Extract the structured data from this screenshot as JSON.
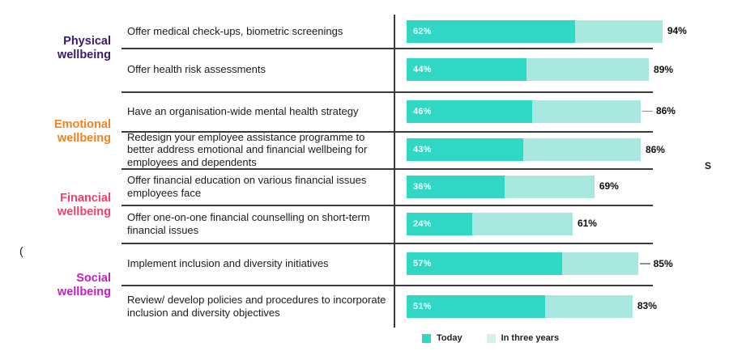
{
  "page": {
    "background": "#ffffff"
  },
  "stray_fragments": {
    "left": "(",
    "right": "S"
  },
  "legend": {
    "items": [
      {
        "label": "Today",
        "swatch_color": "#30d7c4"
      },
      {
        "label": "In three years",
        "swatch_color": "#d3f2ed"
      }
    ]
  },
  "colors": {
    "today_bar": "#30d7c4",
    "future_bar": "#a9e8e0",
    "axis_line": "#3a3a3a",
    "item_text": "#1b1b1b",
    "inside_label": "#ffffff",
    "outside_label": "#0d0d0d"
  },
  "chart_data": {
    "type": "bar",
    "orientation": "horizontal",
    "unit": "%",
    "x_max": 100,
    "series_names": [
      "Today",
      "In three years"
    ],
    "legend_position": "bottom",
    "grid": false,
    "groups": [
      {
        "label": "Physical wellbeing",
        "color": "#3b1874",
        "items": [
          {
            "label": "Offer medical check-ups, biometric screenings",
            "today": 62,
            "in_three_years": 94
          },
          {
            "label": "Offer health risk assessments",
            "today": 44,
            "in_three_years": 89
          }
        ]
      },
      {
        "label": "Emotional wellbeing",
        "color": "#f5821f",
        "items": [
          {
            "label": "Have an organisation-wide mental health strategy",
            "today": 46,
            "in_three_years": 86,
            "leader_dash": true
          },
          {
            "label": "Redesign your employee assistance programme to better address emotional and financial wellbeing for employees and dependents",
            "today": 43,
            "in_three_years": 86
          }
        ]
      },
      {
        "label": "Financial wellbeing",
        "color": "#f63e6a",
        "items": [
          {
            "label": "Offer financial education on various financial issues employees face",
            "today": 36,
            "in_three_years": 69
          },
          {
            "label": "Offer one-on-one financial counselling on short-term financial issues",
            "today": 24,
            "in_three_years": 61
          }
        ]
      },
      {
        "label": "Social wellbeing",
        "color": "#c41fc1",
        "items": [
          {
            "label": "Implement inclusion and diversity initiatives",
            "today": 57,
            "in_three_years": 85,
            "leader_dash": true
          },
          {
            "label": "Review/ develop policies and procedures to incorporate inclusion and diversity objectives",
            "today": 51,
            "in_three_years": 83
          }
        ]
      }
    ]
  }
}
